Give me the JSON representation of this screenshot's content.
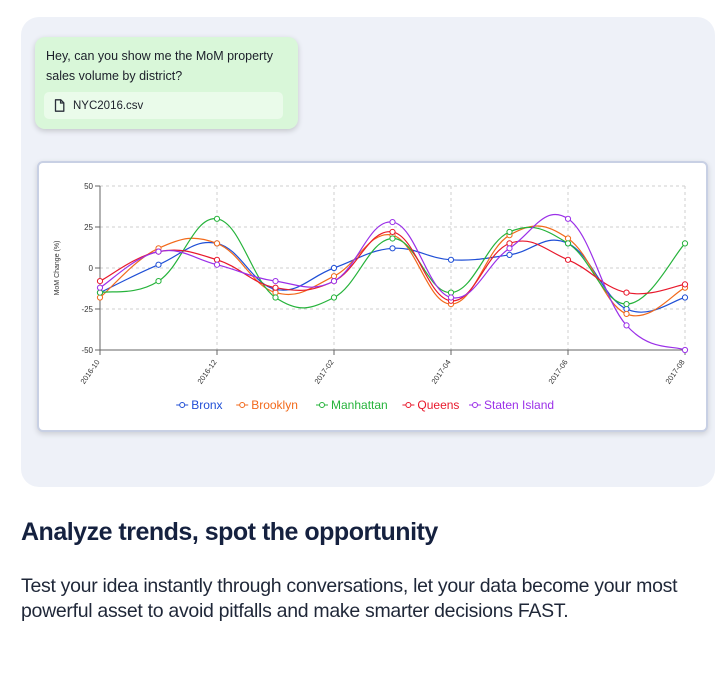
{
  "chat": {
    "message": "Hey, can you show me the MoM property sales volume by district?",
    "attachment": {
      "icon": "file-icon",
      "name": "NYC2016.csv"
    }
  },
  "chart_data": {
    "type": "line",
    "title": "",
    "xlabel": "",
    "ylabel": "MoM Change (%)",
    "ylim": [
      -50,
      50
    ],
    "yticks": [
      50,
      25,
      0,
      -25,
      -50
    ],
    "x": [
      "2016-10",
      "2016-11",
      "2016-12",
      "2017-01",
      "2017-02",
      "2017-03",
      "2017-04",
      "2017-05",
      "2017-06",
      "2017-07",
      "2017-08"
    ],
    "xtick_labels": [
      "2016-10",
      "2016-12",
      "2017-02",
      "2017-04",
      "2017-06",
      "2017-08"
    ],
    "grid": true,
    "legend": "bottom-center",
    "series": [
      {
        "name": "Bronx",
        "color": "#1f4fd6",
        "values": [
          -15,
          2,
          15,
          -13,
          0,
          12,
          5,
          8,
          15,
          -25,
          -18
        ]
      },
      {
        "name": "Brooklyn",
        "color": "#f26a1b",
        "values": [
          -18,
          12,
          15,
          -15,
          -5,
          20,
          -22,
          20,
          18,
          -28,
          -12
        ]
      },
      {
        "name": "Manhattan",
        "color": "#26b33b",
        "values": [
          -15,
          -8,
          30,
          -18,
          -18,
          18,
          -15,
          22,
          15,
          -22,
          15
        ]
      },
      {
        "name": "Queens",
        "color": "#e8192c",
        "values": [
          -8,
          10,
          5,
          -12,
          -8,
          22,
          -20,
          15,
          5,
          -15,
          -10
        ]
      },
      {
        "name": "Staten Island",
        "color": "#9b30e8",
        "values": [
          -12,
          10,
          2,
          -8,
          -8,
          28,
          -18,
          12,
          30,
          -35,
          -50
        ]
      }
    ]
  },
  "headline": "Analyze trends, spot the opportunity",
  "body": "Test your idea instantly through conversations, let your data become your most powerful asset to avoid pitfalls and make smarter decisions FAST."
}
